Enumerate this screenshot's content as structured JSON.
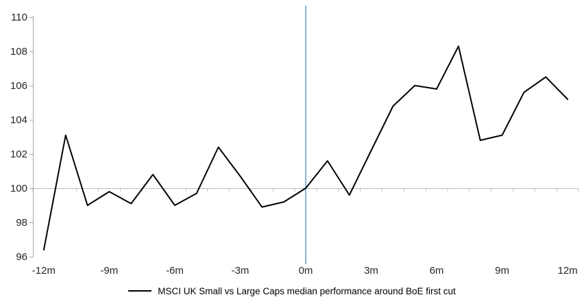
{
  "legend": {
    "label": "MSCI UK Small vs Large Caps median performance around BoE first cut"
  },
  "chart_data": {
    "type": "line",
    "x": [
      -12,
      -11,
      -10,
      -9,
      -8,
      -7,
      -6,
      -5,
      -4,
      -3,
      -2,
      -1,
      0,
      1,
      2,
      3,
      4,
      5,
      6,
      7,
      8,
      9,
      10,
      11,
      12
    ],
    "series": [
      {
        "name": "MSCI UK Small vs Large Caps median performance around BoE first cut",
        "color": "#000000",
        "values": [
          96.4,
          103.1,
          99.0,
          99.8,
          99.1,
          100.8,
          99.0,
          99.7,
          102.4,
          100.7,
          98.9,
          99.2,
          100.0,
          101.6,
          99.6,
          102.2,
          104.8,
          106.0,
          105.8,
          108.3,
          102.8,
          103.1,
          105.6,
          106.5,
          105.2
        ]
      }
    ],
    "ylim": [
      96,
      110
    ],
    "y_ticks": [
      96,
      98,
      100,
      102,
      104,
      106,
      108,
      110
    ],
    "y_tick_labels": [
      "96",
      "98",
      "100",
      "102",
      "104",
      "106",
      "108",
      "110"
    ],
    "x_ticks": [
      {
        "m": -12,
        "label": "-12m"
      },
      {
        "m": -9,
        "label": "-9m"
      },
      {
        "m": -6,
        "label": "-6m"
      },
      {
        "m": -3,
        "label": "-3m"
      },
      {
        "m": 0,
        "label": "0m"
      },
      {
        "m": 3,
        "label": "3m"
      },
      {
        "m": 6,
        "label": "6m"
      },
      {
        "m": 9,
        "label": "9m"
      },
      {
        "m": 12,
        "label": "12m"
      }
    ],
    "baseline_value": 100,
    "event_line_x": 0,
    "grid": false,
    "legend_position": "bottom",
    "colors": {
      "series": "#000000",
      "event_line": "#5B9BD5",
      "baseline": "#BDBDBD",
      "axis": "#A6A6A6",
      "tick_text": "#262626"
    }
  }
}
